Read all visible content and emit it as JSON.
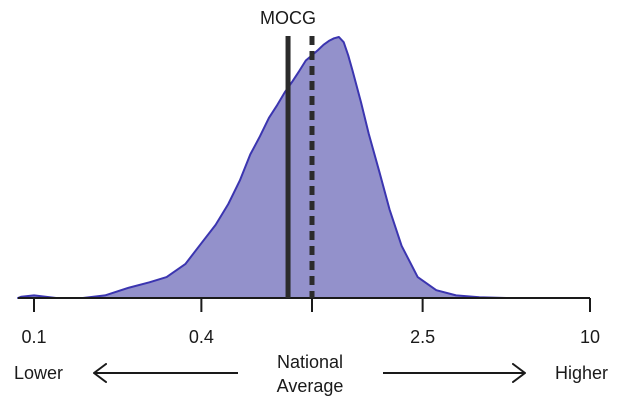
{
  "chart_data": {
    "type": "area",
    "title": "",
    "xlabel": "",
    "ylabel": "",
    "x_scale": "log",
    "xlim": [
      0.08,
      10
    ],
    "ticks": [
      {
        "value": 0.1,
        "label": "0.1"
      },
      {
        "value": 0.4,
        "label": "0.4"
      },
      {
        "value": 1,
        "label": ""
      },
      {
        "value": 2.5,
        "label": "2.5"
      },
      {
        "value": 10,
        "label": "10"
      }
    ],
    "density": {
      "x": [
        0.08,
        0.09,
        0.1,
        0.12,
        0.15,
        0.18,
        0.22,
        0.26,
        0.3,
        0.35,
        0.4,
        0.45,
        0.5,
        0.55,
        0.6,
        0.65,
        0.7,
        0.75,
        0.8,
        0.85,
        0.9,
        0.95,
        1.0,
        1.05,
        1.1,
        1.15,
        1.2,
        1.25,
        1.3,
        1.35,
        1.4,
        1.5,
        1.6,
        1.75,
        1.9,
        2.1,
        2.4,
        2.8,
        3.3,
        4.0,
        5.0
      ],
      "y": [
        0.0,
        0.005,
        0.01,
        0.0,
        0.0,
        0.01,
        0.04,
        0.06,
        0.08,
        0.13,
        0.21,
        0.28,
        0.36,
        0.45,
        0.55,
        0.62,
        0.69,
        0.74,
        0.79,
        0.83,
        0.87,
        0.91,
        0.93,
        0.95,
        0.97,
        0.985,
        0.995,
        1.0,
        0.98,
        0.93,
        0.87,
        0.75,
        0.63,
        0.48,
        0.34,
        0.2,
        0.08,
        0.03,
        0.01,
        0.003,
        0.0
      ]
    },
    "reference_lines": [
      {
        "label": "MOCG",
        "value": 0.82,
        "style": "solid"
      },
      {
        "label": "",
        "value": 1.0,
        "style": "dashed"
      }
    ],
    "colors": {
      "fill": "#9391cb",
      "stroke": "#3b35b0",
      "axis": "#1a1a1a",
      "ref_line": "#2b2b2b"
    },
    "direction": {
      "left_label": "Lower",
      "center_label_line1": "National",
      "center_label_line2": "Average",
      "right_label": "Higher"
    }
  }
}
